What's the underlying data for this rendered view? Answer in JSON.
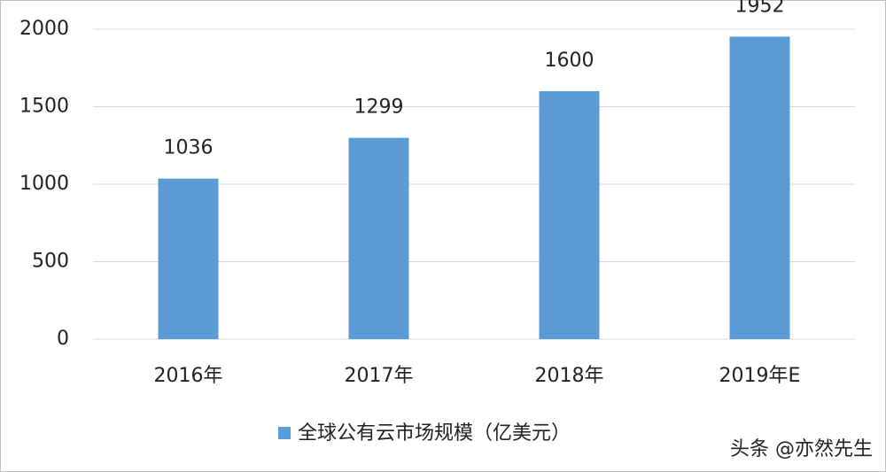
{
  "chart_data": {
    "type": "bar",
    "categories": [
      "2016年",
      "2017年",
      "2018年",
      "2019年E"
    ],
    "series": [
      {
        "name": "全球公有云市场规模（亿美元）",
        "color": "#5b9bd5",
        "values": [
          1036,
          1299,
          1600,
          1952
        ]
      }
    ],
    "ylim": [
      0,
      2000
    ],
    "yticks": [
      0,
      500,
      1000,
      1500,
      2000
    ],
    "grid": true,
    "legend": "bottom"
  },
  "watermark": "头条 @亦然先生"
}
